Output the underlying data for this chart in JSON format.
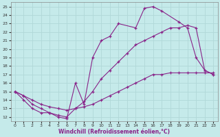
{
  "xlabel": "Windchill (Refroidissement éolien,°C)",
  "xticks": [
    0,
    1,
    2,
    3,
    4,
    5,
    6,
    7,
    8,
    9,
    10,
    11,
    12,
    13,
    14,
    15,
    16,
    17,
    18,
    19,
    20,
    21,
    22,
    23
  ],
  "yticks": [
    12,
    13,
    14,
    15,
    16,
    17,
    18,
    19,
    20,
    21,
    22,
    23,
    24,
    25
  ],
  "xlim": [
    -0.5,
    23.5
  ],
  "ylim": [
    11.5,
    25.5
  ],
  "bg_color": "#c5eaea",
  "line_color": "#882288",
  "grid_color": "#b0d8d8",
  "lines": [
    {
      "x": [
        0,
        1,
        2,
        3,
        4,
        5,
        6,
        7,
        8,
        9,
        10,
        11,
        12,
        14,
        15,
        16,
        17,
        19,
        20,
        21,
        22,
        23
      ],
      "y": [
        15,
        14,
        13,
        12.5,
        12.5,
        12,
        11.8,
        16,
        13.5,
        19,
        21,
        21.5,
        23,
        22.5,
        24.8,
        25,
        24.5,
        23.2,
        22.5,
        19,
        17.5,
        17
      ]
    },
    {
      "x": [
        0,
        1,
        2,
        3,
        4,
        5,
        6,
        7,
        8,
        9,
        10,
        11,
        12,
        13,
        14,
        15,
        16,
        17,
        18,
        19,
        20,
        21,
        22,
        23
      ],
      "y": [
        15,
        14.5,
        13.5,
        13,
        12.5,
        12.2,
        12,
        13,
        13.8,
        15,
        16.5,
        17.5,
        18.5,
        19.5,
        20.5,
        21,
        21.5,
        22,
        22.5,
        22.5,
        22.8,
        22.5,
        17.5,
        17
      ]
    },
    {
      "x": [
        0,
        1,
        2,
        3,
        4,
        5,
        6,
        7,
        8,
        9,
        10,
        11,
        12,
        13,
        14,
        15,
        16,
        17,
        18,
        19,
        20,
        21,
        22,
        23
      ],
      "y": [
        15,
        14.5,
        14,
        13.5,
        13.2,
        13,
        12.8,
        13,
        13.2,
        13.5,
        14,
        14.5,
        15,
        15.5,
        16,
        16.5,
        17,
        17,
        17.2,
        17.2,
        17.2,
        17.2,
        17.2,
        17.2
      ]
    }
  ]
}
